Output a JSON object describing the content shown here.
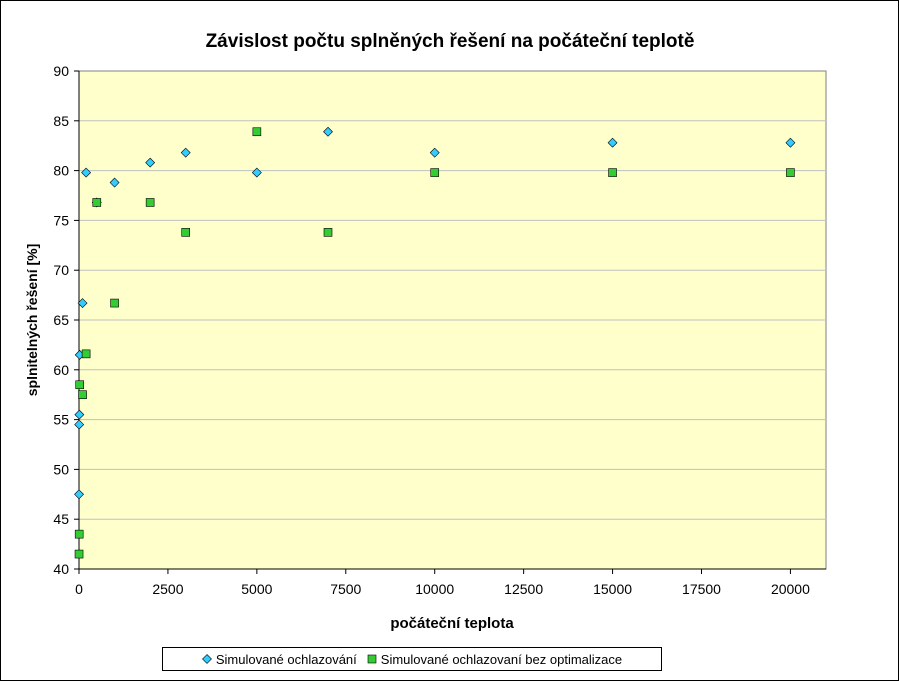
{
  "chart_data": {
    "type": "scatter",
    "title": "Závislost počtu splněných řešení na počáteční teplotě",
    "xlabel": "počáteční teplota",
    "ylabel": "splnitelných řešení [%]",
    "xlim": [
      0,
      21000
    ],
    "ylim": [
      40,
      90
    ],
    "xticks": [
      "0",
      "2500",
      "5000",
      "7500",
      "10000",
      "12500",
      "15000",
      "17500",
      "20000"
    ],
    "yticks": [
      "40",
      "45",
      "50",
      "55",
      "60",
      "65",
      "70",
      "75",
      "80",
      "85",
      "90"
    ],
    "grid": true,
    "legend_position": "bottom",
    "plot_background": "#ffffcc",
    "series": [
      {
        "name": "Simulované ochlazování",
        "marker": "diamond",
        "color": "#33ccff",
        "points": [
          [
            1,
            47.5
          ],
          [
            5,
            54.5
          ],
          [
            10,
            55.5
          ],
          [
            20,
            61.5
          ],
          [
            100,
            66.7
          ],
          [
            200,
            79.8
          ],
          [
            500,
            76.8
          ],
          [
            1000,
            78.8
          ],
          [
            2000,
            80.8
          ],
          [
            3000,
            81.8
          ],
          [
            5000,
            79.8
          ],
          [
            7000,
            83.9
          ],
          [
            10000,
            81.8
          ],
          [
            15000,
            82.8
          ],
          [
            20000,
            82.8
          ]
        ]
      },
      {
        "name": "Simulované ochlazovaní bez optimalizace",
        "marker": "square",
        "color": "#33cc33",
        "points": [
          [
            1,
            41.5
          ],
          [
            5,
            43.5
          ],
          [
            20,
            58.5
          ],
          [
            100,
            57.5
          ],
          [
            200,
            61.6
          ],
          [
            500,
            76.8
          ],
          [
            1000,
            66.7
          ],
          [
            2000,
            76.8
          ],
          [
            3000,
            73.8
          ],
          [
            5000,
            83.9
          ],
          [
            7000,
            73.8
          ],
          [
            10000,
            79.8
          ],
          [
            15000,
            79.8
          ],
          [
            20000,
            79.8
          ]
        ]
      }
    ]
  }
}
